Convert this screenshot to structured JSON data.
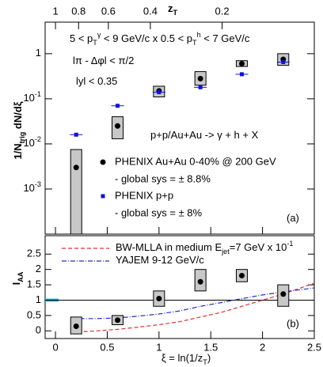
{
  "chart_data": [
    {
      "type": "scatter",
      "log_y": true,
      "xlim": [
        -0.1,
        2.5
      ],
      "ylim": [
        0.0001,
        5
      ],
      "yticks": [
        {
          "value": 0.001,
          "label": "10",
          "exponent": "-3"
        },
        {
          "value": 0.01,
          "label": "10",
          "exponent": "-2"
        },
        {
          "value": 0.1,
          "label": "10",
          "exponent": "-1"
        },
        1
      ],
      "top_axis_label": [
        {
          "text": "z",
          "pos": "base"
        },
        {
          "text": "T",
          "pos": "sub"
        }
      ],
      "top_ticks": [
        {
          "value": 0,
          "label": "1"
        },
        {
          "value": 0.2231,
          "label": "0.8"
        },
        {
          "value": 0.5108,
          "label": "0.6"
        },
        {
          "value": 0.9163,
          "label": "0.4"
        },
        {
          "value": 1.6094,
          "label": "0.2"
        }
      ],
      "ylabel": [
        {
          "text": "1/N",
          "pos": "base"
        },
        {
          "text": "trig",
          "pos": "sub"
        },
        {
          "text": " dN/dξ",
          "pos": "base"
        }
      ],
      "annotations": [
        [
          {
            "text": "5 < p",
            "pos": "base"
          },
          {
            "text": "T",
            "pos": "sub"
          },
          {
            "text": "γ",
            "pos": "sup"
          },
          {
            "text": " < 9 GeV/c x 0.5 < p",
            "pos": "base"
          },
          {
            "text": "T",
            "pos": "sub"
          },
          {
            "text": "h",
            "pos": "sup"
          },
          {
            "text": " < 7 GeV/c",
            "pos": "base"
          }
        ],
        [
          {
            "text": "lπ - Δφl < π/2",
            "pos": "base"
          }
        ],
        [
          {
            "text": "lyl < 0.35",
            "pos": "base"
          }
        ],
        [
          {
            "text": "p+p/Au+Au -> γ + h + X",
            "pos": "base"
          }
        ],
        [
          {
            "text": "(a)",
            "pos": "base"
          }
        ]
      ],
      "series": [
        {
          "name": "PHENIX Au+Au 0-40% @ 200 GeV",
          "note": "- global sys = ± 8.8%",
          "color": "#000000",
          "marker": "circle",
          "x": [
            0.2,
            0.6,
            1.0,
            1.4,
            1.8,
            2.2
          ],
          "values": [
            0.003,
            0.025,
            0.15,
            0.28,
            0.6,
            0.75
          ],
          "sys_low": [
            0.0001,
            0.013,
            0.11,
            0.2,
            0.52,
            0.55
          ],
          "sys_high": [
            0.0075,
            0.04,
            0.19,
            0.4,
            0.7,
            1.0
          ]
        },
        {
          "name": "PHENIX p+p",
          "note": "- global sys = ± 8%",
          "color": "#1010dd",
          "marker": "square",
          "x": [
            0.2,
            0.6,
            1.0,
            1.4,
            1.8,
            2.2
          ],
          "values": [
            0.016,
            0.07,
            0.14,
            0.18,
            0.35,
            0.65
          ]
        }
      ]
    },
    {
      "type": "scatter",
      "xlim": [
        -0.1,
        2.5
      ],
      "ylim": [
        -0.25,
        3.1
      ],
      "xticks": [
        0,
        0.5,
        1,
        1.5,
        2,
        2.5
      ],
      "yticks": [
        0,
        0.5,
        1,
        1.5,
        2,
        2.5
      ],
      "xlabel": [
        {
          "text": "ξ = ln(1/z",
          "pos": "base"
        },
        {
          "text": "T",
          "pos": "sub"
        },
        {
          "text": ")",
          "pos": "base"
        }
      ],
      "ylabel": [
        {
          "text": "I",
          "pos": "base"
        },
        {
          "text": "AA",
          "pos": "sub"
        }
      ],
      "reference": 1,
      "global_band": {
        "xlim": [
          -0.1,
          0.03
        ],
        "ylim": [
          0.95,
          1.05
        ],
        "color": "#22b8c8"
      },
      "annotation": "(b)",
      "series": [
        {
          "color": "#000000",
          "marker": "circle",
          "x": [
            0.2,
            0.6,
            1.0,
            1.4,
            1.8,
            2.2
          ],
          "values": [
            0.15,
            0.35,
            1.05,
            1.6,
            1.8,
            1.2
          ],
          "sys_low": [
            -0.1,
            0.2,
            0.8,
            1.3,
            1.6,
            0.8
          ],
          "sys_high": [
            0.45,
            0.5,
            1.3,
            2.0,
            2.0,
            1.5
          ]
        }
      ],
      "curves": [
        {
          "name_parts": [
            {
              "text": "BW-MLLA in medium E",
              "pos": "base"
            },
            {
              "text": "jet",
              "pos": "sub"
            },
            {
              "text": "=7 GeV x 10",
              "pos": "base"
            },
            {
              "text": "-1",
              "pos": "sup"
            }
          ],
          "color": "#e03030",
          "dash": "5,3",
          "x": [
            0.15,
            0.4,
            0.6,
            0.8,
            1.0,
            1.2,
            1.4,
            1.6,
            1.8,
            2.0,
            2.2,
            2.5
          ],
          "values": [
            -0.05,
            0.0,
            0.05,
            0.12,
            0.2,
            0.3,
            0.45,
            0.6,
            0.8,
            1.0,
            1.2,
            1.55
          ]
        },
        {
          "name_parts": [
            {
              "text": "YAJEM 9-12 GeV/c",
              "pos": "base"
            }
          ],
          "color": "#2030c0",
          "dash": "6,2,1,2",
          "x": [
            0.15,
            0.4,
            0.6,
            0.8,
            1.0,
            1.2,
            1.4,
            1.6,
            1.8,
            2.0,
            2.2,
            2.5
          ],
          "values": [
            0.4,
            0.4,
            0.42,
            0.48,
            0.55,
            0.65,
            0.8,
            0.92,
            1.05,
            1.17,
            1.27,
            1.4
          ]
        }
      ]
    }
  ]
}
